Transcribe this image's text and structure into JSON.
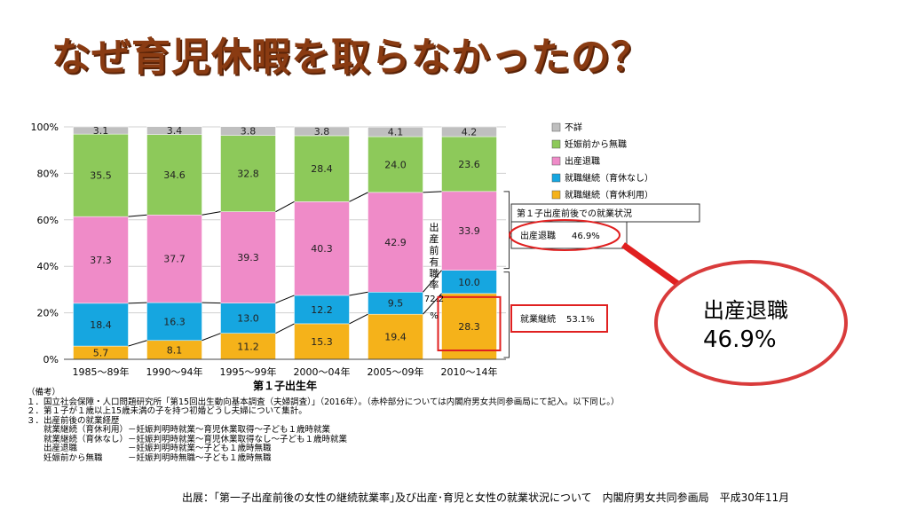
{
  "title": "なぜ育児休暇を取らなかったの？",
  "chart_data": {
    "type": "bar",
    "stacked": true,
    "categories": [
      "1985～89年",
      "1990～94年",
      "1995～99年",
      "2000～04年",
      "2005～09年",
      "2010～14年"
    ],
    "series": [
      {
        "name": "就職継続（育休利用）",
        "color": "#f5b21a",
        "values": [
          5.7,
          8.1,
          11.2,
          15.3,
          19.4,
          28.3
        ]
      },
      {
        "name": "就職継続（育休なし）",
        "color": "#16a6e0",
        "values": [
          18.4,
          16.3,
          13.0,
          12.2,
          9.5,
          10.0
        ]
      },
      {
        "name": "出産退職",
        "color": "#ef8bc8",
        "values": [
          37.3,
          37.7,
          39.3,
          40.3,
          42.9,
          33.9
        ]
      },
      {
        "name": "妊娠前から無職",
        "color": "#8dc95a",
        "values": [
          35.5,
          34.6,
          32.8,
          28.4,
          24.0,
          23.6
        ]
      },
      {
        "name": "不詳",
        "color": "#bfbfbf",
        "values": [
          3.1,
          3.4,
          3.8,
          3.8,
          4.1,
          4.2
        ]
      }
    ],
    "legend_order": [
      "不詳",
      "妊娠前から無職",
      "出産退職",
      "就職継続（育休なし）",
      "就職継続（育休利用）"
    ],
    "ylim": [
      0,
      100
    ],
    "yticks": [
      "0%",
      "20%",
      "40%",
      "60%",
      "80%",
      "100%"
    ],
    "xlabel": "第１子出生年",
    "annotation_vertical": [
      "出",
      "産",
      "前",
      "有",
      "職",
      "率"
    ],
    "annotation_value": "72.2",
    "annotation_unit": "%",
    "summary_box": {
      "header": "第１子出産前後での就業状況",
      "item1_label": "出産退職",
      "item1_value": "46.9%",
      "item2_label": "就業継続",
      "item2_value": "53.1%"
    }
  },
  "callout": {
    "label": "出産退職",
    "value": "46.9%"
  },
  "notes": [
    "（備考）",
    "１．国立社会保障・人口問題研究所「第15回出生動向基本調査（夫婦調査）」（2016年）。（赤枠部分については内閣府男女共同参画局にて記入。以下同じ。）",
    "２．第１子が１歳以上15歳未満の子を持つ初婚どうし夫婦について集計。",
    "３．出産前後の就業経歴",
    "　　就業継続（育休利用）－妊娠判明時就業～育児休業取得～子ども１歳時就業",
    "　　就業継続（育休なし）－妊娠判明時就業～育児休業取得なし～子ども１歳時就業",
    "　　出産退職　　　　　　－妊娠判明時就業～子ども１歳時無職",
    "　　妊娠前から無職　　　－妊娠判明時無職～子ども１歳時無職"
  ],
  "source": "出展：｢第一子出産前後の女性の継続就業率｣及び出産･育児と女性の就業状況について　内閣府男女共同参画局　平成30年11月"
}
